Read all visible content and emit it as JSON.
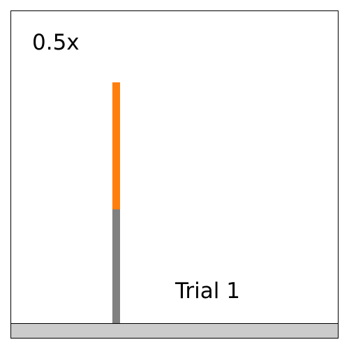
{
  "game": {
    "speed_label": "0.5x",
    "trial_label": "Trial 1"
  },
  "colors": {
    "pole_upper": "#ff7f0e",
    "pole_lower": "#808080",
    "ground": "#cccccc",
    "frame_border": "#000000",
    "background": "#ffffff"
  }
}
